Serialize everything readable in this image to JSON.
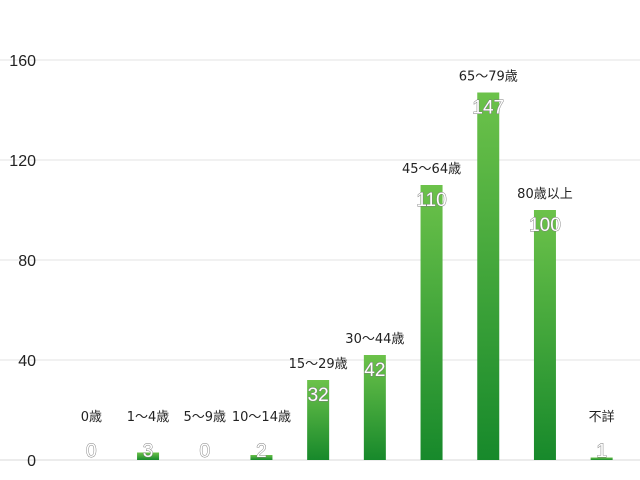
{
  "chart_data": {
    "type": "bar",
    "categories": [
      "0歳",
      "1〜4歳",
      "5〜9歳",
      "10〜14歳",
      "15〜29歳",
      "30〜44歳",
      "45〜64歳",
      "65〜79歳",
      "80歳以上",
      "不詳"
    ],
    "values": [
      0,
      3,
      0,
      2,
      32,
      42,
      110,
      147,
      100,
      1
    ],
    "ylim": [
      0,
      160
    ],
    "yticks": [
      0,
      40,
      80,
      120,
      160
    ],
    "grid": true,
    "legend": "none",
    "colors": {
      "bar_top": "#6cc24a",
      "bar_bottom": "#17892b",
      "grid": "#e3e3e3"
    }
  }
}
